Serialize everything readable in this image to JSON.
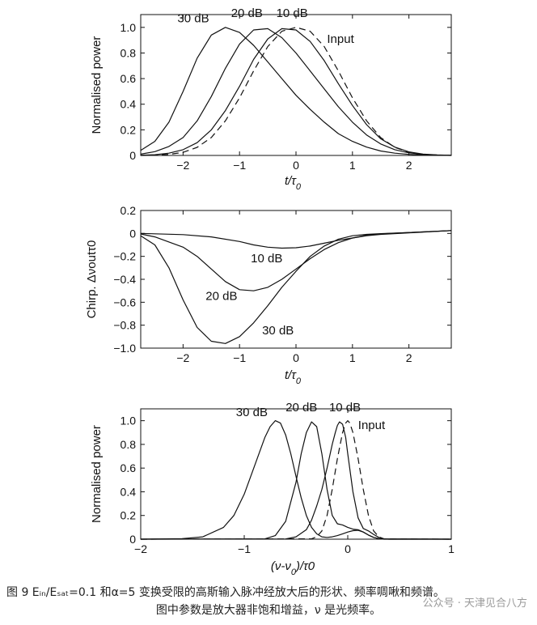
{
  "chart_data": [
    {
      "type": "line",
      "xlabel": "t/τ0",
      "ylabel": "Normalised power",
      "xlim": [
        -2.75,
        2.75
      ],
      "ylim": [
        0,
        1.1
      ],
      "xticks": [
        -2,
        -1,
        0,
        1,
        2
      ],
      "xtick_labels": [
        "−2",
        "−1",
        "0",
        "1",
        "2"
      ],
      "yticks": [
        0,
        0.2,
        0.4,
        0.6,
        0.8,
        1.0
      ],
      "ytick_labels": [
        "0",
        "0.2",
        "0.4",
        "0.6",
        "0.8",
        "1.0"
      ],
      "series": [
        {
          "name": "30 dB",
          "style": "solid",
          "x": [
            -2.75,
            -2.5,
            -2.25,
            -2.0,
            -1.75,
            -1.5,
            -1.25,
            -1.0,
            -0.75,
            -0.5,
            -0.25,
            0.0,
            0.25,
            0.5,
            0.75,
            1.0,
            1.25,
            1.5,
            1.75,
            2.0,
            2.25,
            2.5,
            2.75
          ],
          "y": [
            0.04,
            0.11,
            0.26,
            0.5,
            0.76,
            0.94,
            1.0,
            0.96,
            0.86,
            0.73,
            0.6,
            0.47,
            0.36,
            0.26,
            0.17,
            0.11,
            0.065,
            0.035,
            0.018,
            0.008,
            0.004,
            0.002,
            0.001
          ]
        },
        {
          "name": "20 dB",
          "style": "solid",
          "x": [
            -2.75,
            -2.5,
            -2.25,
            -2.0,
            -1.75,
            -1.5,
            -1.25,
            -1.0,
            -0.75,
            -0.5,
            -0.25,
            0.0,
            0.25,
            0.5,
            0.75,
            1.0,
            1.25,
            1.5,
            1.75,
            2.0,
            2.25,
            2.5,
            2.75
          ],
          "y": [
            0.01,
            0.03,
            0.07,
            0.14,
            0.27,
            0.46,
            0.68,
            0.87,
            0.98,
            0.99,
            0.92,
            0.8,
            0.66,
            0.52,
            0.38,
            0.26,
            0.16,
            0.09,
            0.045,
            0.02,
            0.008,
            0.003,
            0.001
          ]
        },
        {
          "name": "10 dB",
          "style": "solid",
          "x": [
            -2.75,
            -2.5,
            -2.25,
            -2.0,
            -1.75,
            -1.5,
            -1.25,
            -1.0,
            -0.75,
            -0.5,
            -0.25,
            0.0,
            0.25,
            0.5,
            0.75,
            1.0,
            1.25,
            1.5,
            1.75,
            2.0,
            2.25,
            2.5,
            2.75
          ],
          "y": [
            0.002,
            0.006,
            0.018,
            0.045,
            0.1,
            0.2,
            0.35,
            0.54,
            0.75,
            0.91,
            0.99,
            0.98,
            0.89,
            0.74,
            0.56,
            0.39,
            0.24,
            0.13,
            0.065,
            0.028,
            0.011,
            0.004,
            0.001
          ]
        },
        {
          "name": "Input",
          "style": "dashed",
          "x": [
            -2.75,
            -2.5,
            -2.25,
            -2.0,
            -1.75,
            -1.5,
            -1.25,
            -1.0,
            -0.75,
            -0.5,
            -0.25,
            0.0,
            0.25,
            0.5,
            0.75,
            1.0,
            1.25,
            1.5,
            1.75,
            2.0,
            2.25,
            2.5,
            2.75
          ],
          "y": [
            0.0,
            0.002,
            0.008,
            0.024,
            0.063,
            0.14,
            0.27,
            0.45,
            0.66,
            0.85,
            0.97,
            1.0,
            0.97,
            0.85,
            0.66,
            0.45,
            0.27,
            0.14,
            0.063,
            0.024,
            0.008,
            0.002,
            0.0
          ]
        }
      ],
      "annotations": [
        {
          "text": "30 dB",
          "x": -2.1,
          "y": 1.04
        },
        {
          "text": "20 dB",
          "x": -1.15,
          "y": 1.08
        },
        {
          "text": "10 dB",
          "x": -0.35,
          "y": 1.08
        },
        {
          "text": "Input",
          "x": 0.55,
          "y": 0.88
        }
      ]
    },
    {
      "type": "line",
      "xlabel": "t/τ0",
      "ylabel": "Chirp. Δνoutτ0",
      "xlim": [
        -2.75,
        2.75
      ],
      "ylim": [
        -1.0,
        0.2
      ],
      "xticks": [
        -2,
        -1,
        0,
        1,
        2
      ],
      "xtick_labels": [
        "−2",
        "−1",
        "0",
        "1",
        "2"
      ],
      "yticks": [
        -1.0,
        -0.8,
        -0.6,
        -0.4,
        -0.2,
        0,
        0.2
      ],
      "ytick_labels": [
        "−1.0",
        "−0.8",
        "−0.6",
        "−0.4",
        "−0.2",
        "0",
        "0.2"
      ],
      "series": [
        {
          "name": "10 dB",
          "style": "solid",
          "x": [
            -2.75,
            -2.5,
            -2.0,
            -1.5,
            -1.0,
            -0.75,
            -0.5,
            -0.25,
            0.0,
            0.25,
            0.5,
            0.75,
            1.0,
            1.25,
            1.5,
            2.0,
            2.75
          ],
          "y": [
            0.0,
            -0.003,
            -0.01,
            -0.03,
            -0.07,
            -0.1,
            -0.12,
            -0.128,
            -0.125,
            -0.11,
            -0.085,
            -0.06,
            -0.04,
            -0.02,
            -0.008,
            0.005,
            0.025
          ]
        },
        {
          "name": "20 dB",
          "style": "solid",
          "x": [
            -2.75,
            -2.5,
            -2.0,
            -1.75,
            -1.5,
            -1.25,
            -1.0,
            -0.75,
            -0.5,
            -0.25,
            0.0,
            0.25,
            0.5,
            0.75,
            1.0,
            1.25,
            1.5,
            2.0,
            2.75
          ],
          "y": [
            -0.005,
            -0.03,
            -0.12,
            -0.2,
            -0.31,
            -0.42,
            -0.49,
            -0.5,
            -0.47,
            -0.4,
            -0.31,
            -0.22,
            -0.14,
            -0.08,
            -0.04,
            -0.015,
            -0.003,
            0.008,
            0.025
          ]
        },
        {
          "name": "30 dB",
          "style": "solid",
          "x": [
            -2.75,
            -2.5,
            -2.25,
            -2.0,
            -1.75,
            -1.5,
            -1.25,
            -1.0,
            -0.75,
            -0.5,
            -0.25,
            0.0,
            0.25,
            0.5,
            0.75,
            1.0,
            1.25,
            1.5,
            2.0,
            2.75
          ],
          "y": [
            -0.02,
            -0.1,
            -0.3,
            -0.58,
            -0.82,
            -0.94,
            -0.96,
            -0.9,
            -0.78,
            -0.63,
            -0.47,
            -0.33,
            -0.2,
            -0.11,
            -0.05,
            -0.02,
            -0.008,
            -0.002,
            0.008,
            0.025
          ]
        }
      ],
      "annotations": [
        {
          "text": "10 dB",
          "x": -0.8,
          "y": -0.25
        },
        {
          "text": "20 dB",
          "x": -1.6,
          "y": -0.58
        },
        {
          "text": "30 dB",
          "x": -0.6,
          "y": -0.88
        }
      ]
    },
    {
      "type": "line",
      "xlabel": "(ν-ν0)/τ0",
      "ylabel": "Normalised power",
      "xlim": [
        -2.0,
        1.0
      ],
      "ylim": [
        0,
        1.1
      ],
      "xticks": [
        -2,
        -1,
        0,
        1
      ],
      "xtick_labels": [
        "−2",
        "−1",
        "0",
        "1"
      ],
      "yticks": [
        0,
        0.2,
        0.4,
        0.6,
        0.8,
        1.0
      ],
      "ytick_labels": [
        "0",
        "0.2",
        "0.4",
        "0.6",
        "0.8",
        "1.0"
      ],
      "series": [
        {
          "name": "30 dB",
          "style": "solid",
          "x": [
            -2.0,
            -1.6,
            -1.4,
            -1.2,
            -1.1,
            -1.0,
            -0.9,
            -0.8,
            -0.75,
            -0.7,
            -0.65,
            -0.6,
            -0.55,
            -0.5,
            -0.45,
            -0.4,
            -0.35,
            -0.3,
            -0.25,
            -0.2,
            -0.15,
            -0.1,
            -0.05,
            0.0,
            0.05,
            0.1,
            0.15,
            0.2,
            0.25,
            0.3,
            0.4,
            1.0
          ],
          "y": [
            0.0,
            0.005,
            0.02,
            0.1,
            0.2,
            0.38,
            0.62,
            0.86,
            0.95,
            1.0,
            0.98,
            0.88,
            0.72,
            0.53,
            0.35,
            0.2,
            0.1,
            0.045,
            0.02,
            0.015,
            0.02,
            0.03,
            0.045,
            0.06,
            0.072,
            0.075,
            0.06,
            0.035,
            0.015,
            0.005,
            0.0,
            0.0
          ]
        },
        {
          "name": "20 dB",
          "style": "solid",
          "x": [
            -2.0,
            -0.8,
            -0.7,
            -0.6,
            -0.5,
            -0.45,
            -0.4,
            -0.35,
            -0.3,
            -0.25,
            -0.2,
            -0.15,
            -0.1,
            -0.05,
            0.0,
            0.05,
            0.1,
            0.15,
            0.2,
            0.25,
            0.3,
            0.35,
            1.0
          ],
          "y": [
            0.0,
            0.003,
            0.03,
            0.15,
            0.48,
            0.72,
            0.9,
            0.99,
            0.95,
            0.72,
            0.42,
            0.2,
            0.13,
            0.12,
            0.1,
            0.085,
            0.08,
            0.06,
            0.035,
            0.015,
            0.005,
            0.0,
            0.0
          ]
        },
        {
          "name": "10 dB",
          "style": "solid",
          "x": [
            -2.0,
            -0.6,
            -0.5,
            -0.4,
            -0.35,
            -0.3,
            -0.25,
            -0.2,
            -0.15,
            -0.12,
            -0.1,
            -0.08,
            -0.05,
            -0.02,
            0.0,
            0.05,
            0.1,
            0.15,
            0.2,
            0.25,
            0.3,
            0.35,
            1.0
          ],
          "y": [
            0.0,
            0.002,
            0.02,
            0.08,
            0.16,
            0.28,
            0.42,
            0.6,
            0.8,
            0.9,
            0.96,
            0.99,
            0.97,
            0.86,
            0.72,
            0.4,
            0.18,
            0.09,
            0.07,
            0.04,
            0.015,
            0.003,
            0.0
          ]
        },
        {
          "name": "Input",
          "style": "dashed",
          "x": [
            -2.0,
            -0.35,
            -0.3,
            -0.25,
            -0.2,
            -0.15,
            -0.1,
            -0.05,
            -0.02,
            0.0,
            0.02,
            0.05,
            0.1,
            0.15,
            0.2,
            0.25,
            0.3,
            0.35,
            1.0
          ],
          "y": [
            0.0,
            0.003,
            0.02,
            0.07,
            0.2,
            0.42,
            0.68,
            0.9,
            0.98,
            1.0,
            0.98,
            0.9,
            0.68,
            0.42,
            0.2,
            0.07,
            0.02,
            0.003,
            0.0
          ]
        }
      ],
      "annotations": [
        {
          "text": "30 dB",
          "x": -1.08,
          "y": 1.04
        },
        {
          "text": "20 dB",
          "x": -0.6,
          "y": 1.08
        },
        {
          "text": "10 dB",
          "x": -0.18,
          "y": 1.08
        },
        {
          "text": "Input",
          "x": 0.1,
          "y": 0.93
        }
      ]
    }
  ],
  "caption": {
    "line1": "图 9   Eᵢₙ/Eₛₐₜ=0.1 和α=5 变换受限的高斯输入脉冲经放大后的形状、频率啁啾和频谱。",
    "line2": "图中参数是放大器非饱和增益，ν 是光频率。"
  },
  "watermark": "公众号 · 天津见合八方"
}
